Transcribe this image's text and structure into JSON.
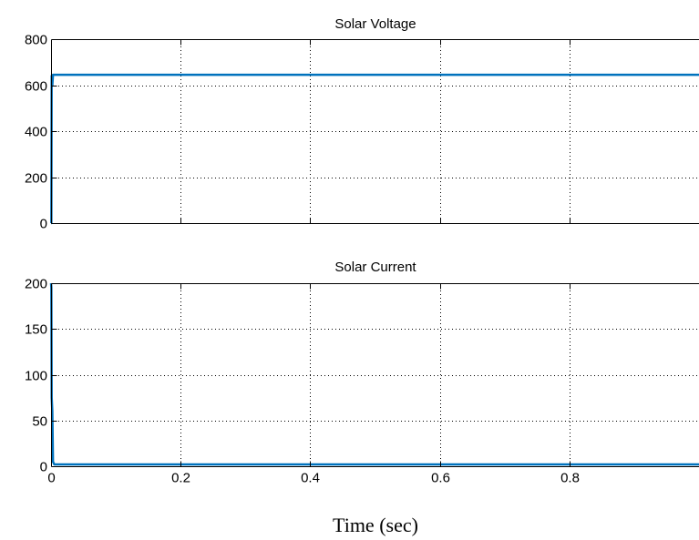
{
  "chart_data": [
    {
      "type": "line",
      "title": "Solar Voltage",
      "xlabel": "",
      "ylabel": "",
      "xlim": [
        0,
        1
      ],
      "ylim": [
        0,
        800
      ],
      "xticks": [
        0,
        0.2,
        0.4,
        0.6,
        0.8
      ],
      "yticks": [
        0,
        200,
        400,
        600,
        800
      ],
      "xtick_labels": [
        "",
        "",
        "",
        "",
        ""
      ],
      "ytick_labels": [
        "0",
        "200",
        "400",
        "600",
        "800"
      ],
      "grid": true,
      "color": "#0072BD",
      "series": [
        {
          "x": [
            0,
            0.0005,
            0.001,
            0.002,
            0.003,
            1.0
          ],
          "y": [
            0,
            0,
            640,
            600,
            645,
            645
          ]
        }
      ]
    },
    {
      "type": "line",
      "title": "Solar Current",
      "xlabel": "Time (sec)",
      "ylabel": "",
      "xlim": [
        0,
        1
      ],
      "ylim": [
        0,
        200
      ],
      "xticks": [
        0,
        0.2,
        0.4,
        0.6,
        0.8
      ],
      "yticks": [
        0,
        50,
        100,
        150,
        200
      ],
      "xtick_labels": [
        "0",
        "0.2",
        "0.4",
        "0.6",
        "0.8"
      ],
      "ytick_labels": [
        "0",
        "50",
        "100",
        "150",
        "200"
      ],
      "grid": true,
      "color": "#0072BD",
      "series": [
        {
          "x": [
            0,
            0.0005,
            0.001,
            0.002,
            0.003,
            0.005,
            1.0
          ],
          "y": [
            200,
            195,
            75,
            60,
            5,
            2,
            2
          ]
        }
      ]
    }
  ]
}
